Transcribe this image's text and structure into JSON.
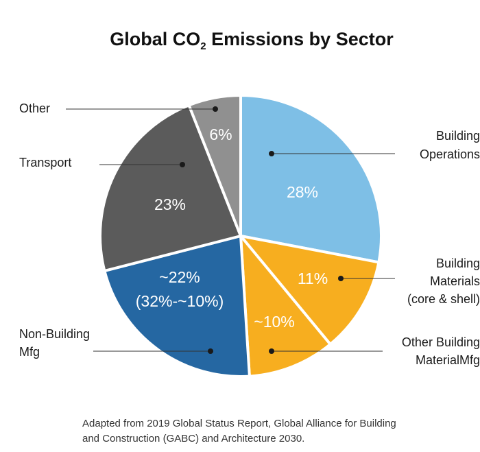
{
  "chart_data": {
    "type": "pie",
    "title": {
      "prefix": "Global CO",
      "subscript": "2",
      "suffix": " Emissions by Sector"
    },
    "slices": [
      {
        "label": [
          "Building",
          "Operations"
        ],
        "value": 28,
        "display": "28%",
        "color": "#7ebfe6"
      },
      {
        "label": [
          "Building",
          "Materials",
          "(core & shell)"
        ],
        "value": 11,
        "display": "11%",
        "color": "#f7ae1f"
      },
      {
        "label": [
          "Other Building",
          "MaterialMfg"
        ],
        "value": 10,
        "display": "~10%",
        "color": "#f7ae1f"
      },
      {
        "label": [
          "Non-Building",
          "Mfg"
        ],
        "value": 22,
        "display": "~22%",
        "display2": "(32%-~10%)",
        "color": "#2567a2"
      },
      {
        "label": [
          "Transport"
        ],
        "value": 23,
        "display": "23%",
        "color": "#5b5b5b"
      },
      {
        "label": [
          "Other"
        ],
        "value": 6,
        "display": "6%",
        "color": "#909090"
      }
    ]
  },
  "footnote": {
    "line1": "Adapted from 2019 Global Status Report, Global Alliance for Building",
    "line2": "and Construction (GABC) and Architecture 2030."
  }
}
